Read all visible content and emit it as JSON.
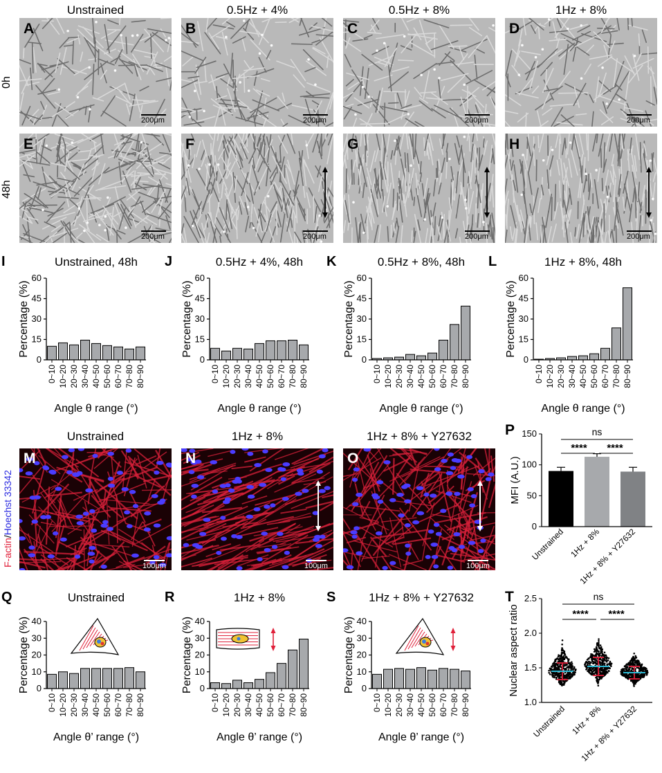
{
  "micro_row1": {
    "titles": [
      "Unstrained",
      "0.5Hz + 4%",
      "0.5Hz + 8%",
      "1Hz + 8%"
    ],
    "row_labels": [
      "0h",
      "48h"
    ],
    "panels_top": [
      "A",
      "B",
      "C",
      "D"
    ],
    "panels_bottom": [
      "E",
      "F",
      "G",
      "H"
    ],
    "scalebar": "200μm"
  },
  "angle_row": {
    "panels": [
      "I",
      "J",
      "K",
      "L"
    ],
    "titles": [
      "Unstrained, 48h",
      "0.5Hz + 4%, 48h",
      "0.5Hz + 8%, 48h",
      "1Hz + 8%, 48h"
    ]
  },
  "fluor_row": {
    "titles": [
      "Unstrained",
      "1Hz + 8%",
      "1Hz + 8% + Y27632"
    ],
    "panels": [
      "M",
      "N",
      "O"
    ],
    "stain_label_red": "F-actin",
    "stain_label_sep": "/",
    "stain_label_blue": "Hoechst 33342",
    "scalebar": "100μm"
  },
  "theta2_row": {
    "panels": [
      "Q",
      "R",
      "S"
    ],
    "titles": [
      "Unstrained",
      "1Hz + 8%",
      "1Hz + 8% + Y27632"
    ]
  },
  "panel_P": "P",
  "panel_T": "T",
  "sig": {
    "ns": "ns",
    "stars": "****"
  },
  "colors": {
    "bar_fill": "#a7a9ac",
    "red_actin": "#e0203a",
    "blue_nuclei": "#3a3aff",
    "cyan_mean": "#2bb9d3"
  },
  "chart_data": [
    {
      "id": "I",
      "type": "bar",
      "title": "Unstrained, 48h",
      "categories": [
        "0~10",
        "10~20",
        "20~30",
        "30~40",
        "40~50",
        "50~60",
        "60~70",
        "70~80",
        "80~90"
      ],
      "values": [
        10,
        12.5,
        11,
        14.5,
        12,
        10.5,
        9.5,
        8,
        9.5
      ],
      "ylabel": "Percentage (%)",
      "xlabel": "Angle θ range (°)",
      "ylim": [
        0,
        60
      ],
      "yticks": [
        0,
        15,
        30,
        45,
        60
      ]
    },
    {
      "id": "J",
      "type": "bar",
      "title": "0.5Hz + 4%, 48h",
      "categories": [
        "0~10",
        "10~20",
        "20~30",
        "30~40",
        "40~50",
        "50~60",
        "60~70",
        "70~80",
        "80~90"
      ],
      "values": [
        8.5,
        6.5,
        8.5,
        8,
        12,
        14,
        14,
        14.5,
        11
      ],
      "ylabel": "Percentage (%)",
      "xlabel": "Angle θ range (°)",
      "ylim": [
        0,
        60
      ],
      "yticks": [
        0,
        15,
        30,
        45,
        60
      ]
    },
    {
      "id": "K",
      "type": "bar",
      "title": "0.5Hz + 8%, 48h",
      "categories": [
        "0~10",
        "10~20",
        "20~30",
        "30~40",
        "40~50",
        "50~60",
        "60~70",
        "70~80",
        "80~90"
      ],
      "values": [
        1,
        1.5,
        2,
        4,
        3,
        5,
        14.5,
        26,
        39.5
      ],
      "ylabel": "Percentage (%)",
      "xlabel": "Angle θ range (°)",
      "ylim": [
        0,
        60
      ],
      "yticks": [
        0,
        15,
        30,
        45,
        60
      ]
    },
    {
      "id": "L",
      "type": "bar",
      "title": "1Hz + 8%, 48h",
      "categories": [
        "0~10",
        "10~20",
        "20~30",
        "30~40",
        "40~50",
        "50~60",
        "60~70",
        "70~80",
        "80~90"
      ],
      "values": [
        0.5,
        1,
        1.5,
        2.5,
        3,
        4.5,
        8.5,
        23.5,
        53
      ],
      "ylabel": "Percentage (%)",
      "xlabel": "Angle θ range (°)",
      "ylim": [
        0,
        60
      ],
      "yticks": [
        0,
        15,
        30,
        45,
        60
      ]
    },
    {
      "id": "P",
      "type": "bar",
      "categories": [
        "Unstrained",
        "1Hz + 8%",
        "1Hz + 8% + Y27632"
      ],
      "values": [
        90,
        113,
        89
      ],
      "errors": [
        6,
        5,
        7
      ],
      "colors": [
        "#000000",
        "#a7a9ac",
        "#808285"
      ],
      "ylabel": "MFI (A.U.)",
      "ylim": [
        0,
        150
      ],
      "yticks": [
        0,
        50,
        100,
        150
      ]
    },
    {
      "id": "Q",
      "type": "bar",
      "title": "Unstrained",
      "categories": [
        "0~10",
        "10~20",
        "20~30",
        "30~40",
        "40~50",
        "50~60",
        "60~70",
        "70~80",
        "80~90"
      ],
      "values": [
        8.5,
        10,
        9,
        12,
        12,
        12,
        12,
        12.5,
        10
      ],
      "ylabel": "Percentage (%)",
      "xlabel": "Angle θ’ range (°)",
      "ylim": [
        0,
        40
      ],
      "yticks": [
        0,
        10,
        20,
        30,
        40
      ]
    },
    {
      "id": "R",
      "type": "bar",
      "title": "1Hz + 8%",
      "categories": [
        "0~10",
        "10~20",
        "20~30",
        "30~40",
        "40~50",
        "50~60",
        "60~70",
        "70~80",
        "80~90"
      ],
      "values": [
        3.5,
        3,
        5,
        3.5,
        5.5,
        9.5,
        15,
        23,
        29.5
      ],
      "ylabel": "Percentage (%)",
      "xlabel": "Angle θ’ range (°)",
      "ylim": [
        0,
        40
      ],
      "yticks": [
        0,
        10,
        20,
        30,
        40
      ]
    },
    {
      "id": "S",
      "type": "bar",
      "title": "1Hz + 8% + Y27632",
      "categories": [
        "0~10",
        "10~20",
        "20~30",
        "30~40",
        "40~50",
        "50~60",
        "60~70",
        "70~80",
        "80~90"
      ],
      "values": [
        8.5,
        11.5,
        12,
        11.5,
        12.5,
        11,
        12,
        11.5,
        10.5
      ],
      "ylabel": "Percentage (%)",
      "xlabel": "Angle θ’ range (°)",
      "ylim": [
        0,
        40
      ],
      "yticks": [
        0,
        10,
        20,
        30,
        40
      ]
    },
    {
      "id": "T",
      "type": "scatter",
      "categories": [
        "Unstrained",
        "1Hz + 8%",
        "1Hz + 8% + Y27632"
      ],
      "means": [
        1.45,
        1.52,
        1.43
      ],
      "sd": [
        0.12,
        0.13,
        0.09
      ],
      "ylabel": "Nuclear aspect ratio",
      "ylim": [
        1.0,
        2.5
      ],
      "yticks": [
        1.0,
        1.5,
        2.0,
        2.5
      ]
    }
  ]
}
